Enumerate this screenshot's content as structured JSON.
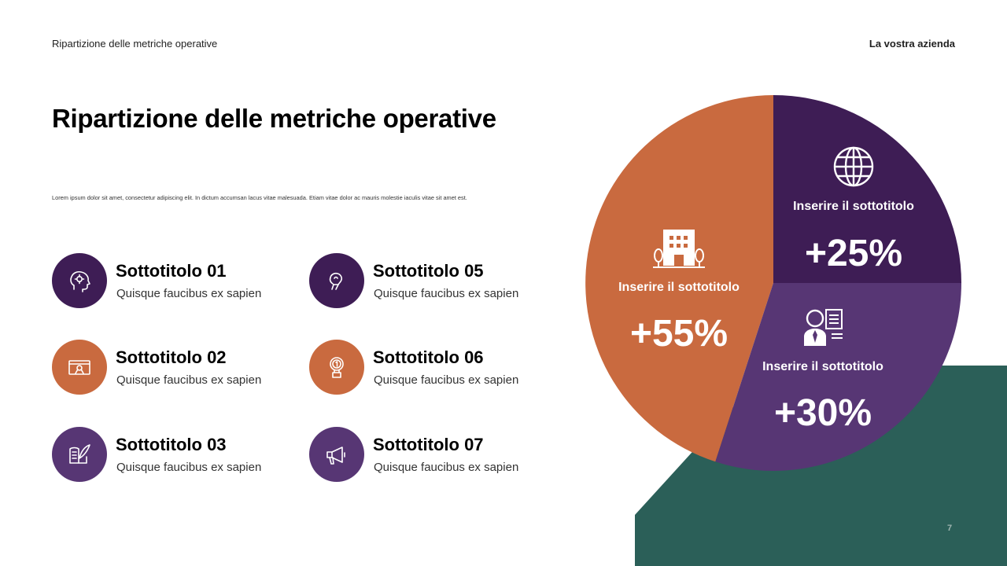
{
  "header": {
    "left": "Ripartizione delle metriche operative",
    "right": "La vostra azienda"
  },
  "title": "Ripartizione delle metriche operative",
  "body_text": "Lorem ipsum dolor sit amet, consectetur adipiscing elit. In dictum accumsan lacus vitae malesuada. Etiam vitae dolor ac mauris molestie iaculis vitae sit amet est.",
  "items": [
    {
      "title": "Sottotitolo 01",
      "subtitle": "Quisque faucibus ex sapien",
      "icon": "head-gears-icon",
      "color": "#3e1d55"
    },
    {
      "title": "Sottotitolo 02",
      "subtitle": "Quisque faucibus ex sapien",
      "icon": "certificate-icon",
      "color": "#c96a3f"
    },
    {
      "title": "Sottotitolo 03",
      "subtitle": "Quisque faucibus ex sapien",
      "icon": "book-quill-icon",
      "color": "#573674"
    },
    {
      "title": "Sottotitolo 05",
      "subtitle": "Quisque faucibus ex sapien",
      "icon": "lightbulb-idea-icon",
      "color": "#3e1d55"
    },
    {
      "title": "Sottotitolo 06",
      "subtitle": "Quisque faucibus ex sapien",
      "icon": "award-medal-icon",
      "color": "#c96a3f"
    },
    {
      "title": "Sottotitolo 07",
      "subtitle": "Quisque faucibus ex sapien",
      "icon": "megaphone-icon",
      "color": "#573674"
    }
  ],
  "pie": {
    "segments": [
      {
        "label": "Inserire il sottotitolo",
        "value": "+25%",
        "icon": "globe-icon",
        "color": "#3e1d55"
      },
      {
        "label": "Inserire il sottotitolo",
        "value": "+30%",
        "icon": "user-profile-icon",
        "color": "#573674"
      },
      {
        "label": "Inserire il sottotitolo",
        "value": "+55%",
        "icon": "building-icon",
        "color": "#c96a3f"
      }
    ]
  },
  "accent_colors": {
    "green": "#2b5f58",
    "purple_dark": "#3e1d55",
    "purple": "#573674",
    "orange": "#c96a3f"
  },
  "page_number": "7"
}
